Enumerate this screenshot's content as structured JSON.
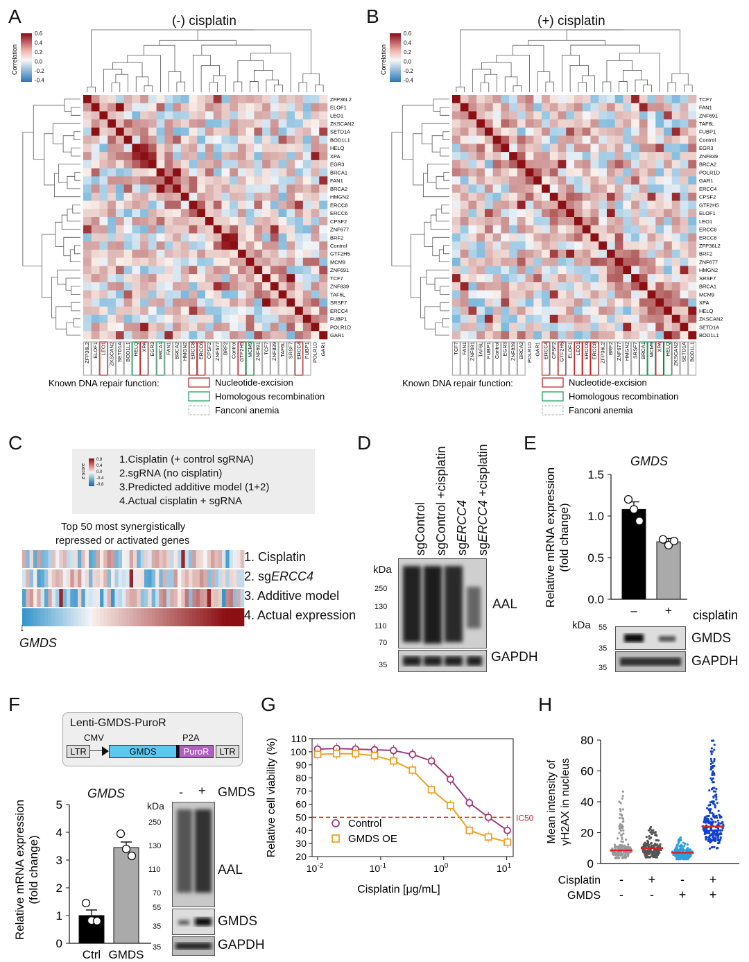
{
  "panels": {
    "A": {
      "letter": "A",
      "title": "(-) cisplatin",
      "genes": [
        "ZFP36L2",
        "ELOF1",
        "LEO1",
        "ZKSCAN2",
        "SETD1A",
        "BOD1L1",
        "HELQ",
        "XPA",
        "EGR3",
        "BRCA1",
        "FAN1",
        "BRCA2",
        "HMGN2",
        "ERCC8",
        "ERCC6",
        "CPSF2",
        "ZNF677",
        "BRF2",
        "Control",
        "GTF2H5",
        "MCM9",
        "ZNF691",
        "TCF7",
        "ZNF839",
        "TAF6L",
        "SRSF7",
        "ERCC4",
        "FUBP1",
        "POLR1D",
        "GAR1"
      ]
    },
    "B": {
      "letter": "B",
      "title": "(+) cisplatin",
      "genes": [
        "TCF7",
        "FAN1",
        "ZNF691",
        "TAF6L",
        "FUBP1",
        "Control",
        "EGR3",
        "ZNF839",
        "BRCA2",
        "POLR1D",
        "GAR1",
        "ERCC4",
        "CPSF2",
        "GTF2H5",
        "ELOF1",
        "LEO1",
        "ERCC6",
        "ERCC8",
        "ZFP36L2",
        "BRF2",
        "ZNF677",
        "HMGN2",
        "SRSF7",
        "BRCA1",
        "MCM9",
        "XPA",
        "HELQ",
        "ZKSCAN2",
        "SETD1A",
        "BOD1L1"
      ]
    },
    "colorbar": {
      "label": "Correlation",
      "ticks": [
        "0.6",
        "0.4",
        "0.2",
        "0.0",
        "-0.2",
        "-0.4"
      ]
    },
    "legend": {
      "title": "Known DNA repair function:",
      "items": [
        "Nucleotide-excision",
        "Homologous recombination",
        "Fanconi anemia"
      ]
    },
    "C": {
      "letter": "C",
      "key": [
        "1.Cisplatin (+ control sgRNA)",
        "2.sgRNA (no cisplatin)",
        "3.Predicted additive model (1+2)",
        "4.Actual cisplatin + sgRNA"
      ],
      "zscore_label": "z-score",
      "zscore_ticks": [
        "0.8",
        "0.4",
        "0.0",
        "-0.4",
        "-0.8"
      ],
      "heading": [
        "Top 50 most synergistically",
        "repressed or activated genes"
      ],
      "rows": [
        "1. Cisplatin",
        "2. sg",
        "3. Additive model",
        "4. Actual expression"
      ],
      "row2_gene": "ERCC4",
      "arrow_label": "GMDS"
    },
    "D": {
      "letter": "D",
      "lanes": [
        "sgControl",
        "sgControl +cisplatin",
        "sgERCC4",
        "sgERCC4 +cisplatin"
      ],
      "lane_prefix": [
        "sg",
        "sg"
      ],
      "lane_gene": "ERCC4",
      "lane_suffix": "+cisplatin",
      "lane_ctrl": "sgControl",
      "lane_ctrl2": "sgControl +cisplatin",
      "kda": "kDa",
      "markers": [
        "250",
        "130",
        "110",
        "70",
        "35"
      ],
      "blots": [
        "AAL",
        "GAPDH"
      ]
    },
    "E": {
      "letter": "E",
      "title": "GMDS",
      "ylabel": [
        "Relative mRNA expression",
        "(fold change)"
      ],
      "yticks": [
        "1.5",
        "1.0",
        "0.5",
        "0.0"
      ],
      "x": [
        "–",
        "+"
      ],
      "xlabel": "cisplatin",
      "kda": "kDa",
      "markers": [
        "55",
        "35",
        "35"
      ],
      "blots": [
        "GMDS",
        "GAPDH"
      ]
    },
    "F": {
      "letter": "F",
      "construct": "Lenti-GMDS-PuroR",
      "parts": [
        "CMV",
        "P2A",
        "LTR",
        "GMDS",
        "PuroR",
        "LTR"
      ],
      "title": "GMDS",
      "ylabel": [
        "Relative mRNA expression",
        "(fold change)"
      ],
      "yticks": [
        "5",
        "4",
        "3",
        "2",
        "1",
        "0"
      ],
      "x": [
        "Ctrl",
        "GMDS"
      ],
      "blot_header": [
        "-",
        "+",
        "GMDS"
      ],
      "kda": "kDa",
      "markers": [
        "250",
        "130",
        "110",
        "70",
        "55",
        "35",
        "35"
      ],
      "blots": [
        "AAL",
        "GMDS",
        "GAPDH"
      ]
    },
    "G": {
      "letter": "G"
    },
    "H": {
      "letter": "H",
      "ylabel": [
        "Mean intensity of",
        "γH2AX in nucleus"
      ],
      "yticks": [
        "80",
        "60",
        "40",
        "20",
        "0"
      ],
      "row1_label": "Cisplatin",
      "row1": [
        "-",
        "+",
        "-",
        "+"
      ],
      "row2_label": "GMDS",
      "row2": [
        "-",
        "-",
        "+",
        "+"
      ]
    }
  },
  "chart_data": [
    {
      "type": "bar",
      "title": "GMDS",
      "categories": [
        "–",
        "+"
      ],
      "xlabel": "cisplatin",
      "ylabel": "Relative mRNA expression (fold change)",
      "ylim": [
        0,
        1.5
      ],
      "values": [
        1.08,
        0.69
      ],
      "points": [
        [
          1.2,
          1.08,
          0.94
        ],
        [
          0.72,
          0.65,
          0.7
        ]
      ],
      "sem": [
        0.09,
        0.04
      ]
    },
    {
      "type": "bar",
      "title": "GMDS",
      "categories": [
        "Ctrl",
        "GMDS"
      ],
      "ylabel": "Relative mRNA expression (fold change)",
      "ylim": [
        0,
        5
      ],
      "values": [
        1.0,
        3.45
      ],
      "points": [
        [
          1.45,
          0.82,
          0.8
        ],
        [
          3.95,
          3.4,
          3.15
        ]
      ],
      "sem": [
        0.2,
        0.2
      ]
    },
    {
      "type": "line",
      "xlabel": "Cisplatin [μg/mL]",
      "ylabel": "Relative cell viability (%)",
      "xscale": "log",
      "xlim": [
        0.01,
        10
      ],
      "ylim": [
        20,
        110
      ],
      "xticks": [
        "10^-2",
        "10^-1",
        "10^0",
        "10^1"
      ],
      "yticks": [
        20,
        30,
        40,
        50,
        60,
        70,
        80,
        90,
        100,
        110
      ],
      "x": [
        0.01,
        0.02,
        0.04,
        0.08,
        0.16,
        0.32,
        0.64,
        1.28,
        2.56,
        5.12,
        10.24
      ],
      "series": [
        {
          "name": "Control",
          "values": [
            102,
            102.5,
            102,
            101.5,
            101,
            98,
            93,
            79,
            61,
            50,
            40
          ],
          "color": "#a03a7a"
        },
        {
          "name": "GMDS OE",
          "values": [
            98,
            98.5,
            98.5,
            97,
            93,
            86,
            71,
            59,
            40,
            35,
            31
          ],
          "color": "#f0a020"
        }
      ],
      "ref_line": {
        "y": 50,
        "label": "IC50",
        "color": "#d22"
      }
    },
    {
      "type": "scatter",
      "ylabel": "Mean intensity of γH2AX in nucleus",
      "ylim": [
        0,
        80
      ],
      "groups": [
        "Cisplatin - / GMDS -",
        "Cisplatin + / GMDS -",
        "Cisplatin - / GMDS +",
        "Cisplatin + / GMDS +"
      ],
      "means": [
        8.5,
        10,
        7,
        24
      ],
      "maxima": [
        47,
        24,
        17,
        80
      ],
      "colors": [
        "#999999",
        "#555555",
        "#2aa0e0",
        "#1040d0"
      ]
    }
  ]
}
